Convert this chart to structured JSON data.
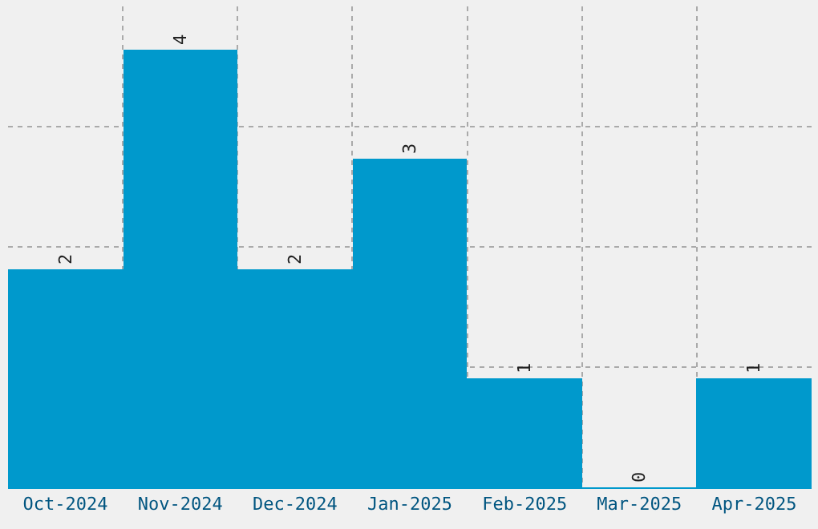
{
  "chart_data": {
    "type": "bar",
    "categories": [
      "Oct-2024",
      "Nov-2024",
      "Dec-2024",
      "Jan-2025",
      "Feb-2025",
      "Mar-2025",
      "Apr-2025"
    ],
    "values": [
      2,
      4,
      2,
      3,
      1,
      0,
      1
    ],
    "color": "#0099cc",
    "data_labels": true,
    "grid": true,
    "ylim": [
      0,
      4.4
    ],
    "yticks": [
      {
        "value": 1.1,
        "label": null
      },
      {
        "value": 2.2,
        "label": null
      },
      {
        "value": 3.3,
        "label": null
      }
    ],
    "tick_labels": "x"
  }
}
